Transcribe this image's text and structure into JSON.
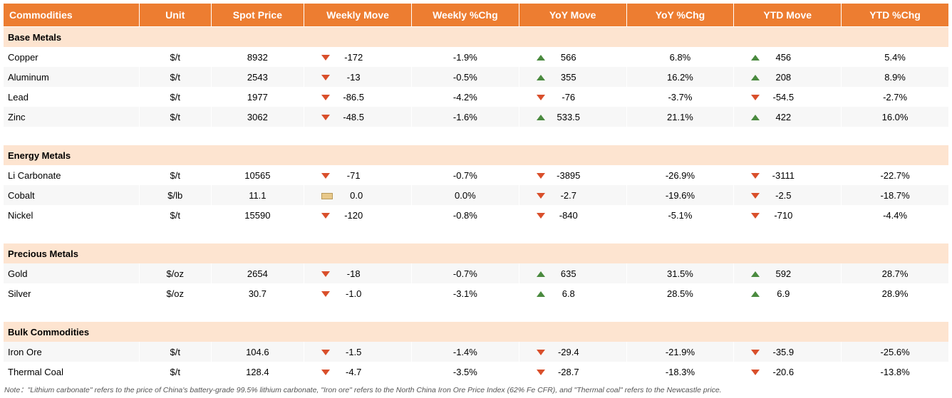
{
  "headers": {
    "commodities": "Commodities",
    "unit": "Unit",
    "spot": "Spot Price",
    "wmove": "Weekly Move",
    "wchg": "Weekly %Chg",
    "ymove": "YoY Move",
    "ychg": "YoY  %Chg",
    "ytdmove": "YTD Move",
    "ytdchg": "YTD %Chg"
  },
  "colors": {
    "header_bg": "#ed7d31",
    "header_text": "#ffffff",
    "section_bg": "#fde4d0",
    "row_alt_bg": "#f7f7f7",
    "row_bg": "#ffffff",
    "up": "#4a8a3f",
    "down": "#d94f2b",
    "flat_fill": "#e8c98b",
    "flat_border": "#b89a5b"
  },
  "fonts": {
    "header_size": 14,
    "body_size": 13,
    "note_size": 10.5
  },
  "sections": [
    {
      "title": "Base Metals",
      "rows": [
        {
          "name": "Copper",
          "unit": "$/t",
          "spot": "8932",
          "wmove": "-172",
          "wdir": "down",
          "wchg": "-1.9%",
          "ymove": "566",
          "ydir": "up",
          "ychg": "6.8%",
          "ytdmove": "456",
          "ytddir": "up",
          "ytdchg": "5.4%"
        },
        {
          "name": "Aluminum",
          "unit": "$/t",
          "spot": "2543",
          "wmove": "-13",
          "wdir": "down",
          "wchg": "-0.5%",
          "ymove": "355",
          "ydir": "up",
          "ychg": "16.2%",
          "ytdmove": "208",
          "ytddir": "up",
          "ytdchg": "8.9%"
        },
        {
          "name": "Lead",
          "unit": "$/t",
          "spot": "1977",
          "wmove": "-86.5",
          "wdir": "down",
          "wchg": "-4.2%",
          "ymove": "-76",
          "ydir": "down",
          "ychg": "-3.7%",
          "ytdmove": "-54.5",
          "ytddir": "down",
          "ytdchg": "-2.7%"
        },
        {
          "name": "Zinc",
          "unit": "$/t",
          "spot": "3062",
          "wmove": "-48.5",
          "wdir": "down",
          "wchg": "-1.6%",
          "ymove": "533.5",
          "ydir": "up",
          "ychg": "21.1%",
          "ytdmove": "422",
          "ytddir": "up",
          "ytdchg": "16.0%"
        }
      ]
    },
    {
      "title": "Energy Metals",
      "rows": [
        {
          "name": "Li Carbonate",
          "unit": "$/t",
          "spot": "10565",
          "wmove": "-71",
          "wdir": "down",
          "wchg": "-0.7%",
          "ymove": "-3895",
          "ydir": "down",
          "ychg": "-26.9%",
          "ytdmove": "-3111",
          "ytddir": "down",
          "ytdchg": "-22.7%"
        },
        {
          "name": "Cobalt",
          "unit": "$/lb",
          "spot": "11.1",
          "wmove": "0.0",
          "wdir": "flat",
          "wchg": "0.0%",
          "ymove": "-2.7",
          "ydir": "down",
          "ychg": "-19.6%",
          "ytdmove": "-2.5",
          "ytddir": "down",
          "ytdchg": "-18.7%"
        },
        {
          "name": "Nickel",
          "unit": "$/t",
          "spot": "15590",
          "wmove": "-120",
          "wdir": "down",
          "wchg": "-0.8%",
          "ymove": "-840",
          "ydir": "down",
          "ychg": "-5.1%",
          "ytdmove": "-710",
          "ytddir": "down",
          "ytdchg": "-4.4%"
        }
      ]
    },
    {
      "title": "Precious Metals",
      "rows": [
        {
          "name": "Gold",
          "unit": "$/oz",
          "spot": "2654",
          "wmove": "-18",
          "wdir": "down",
          "wchg": "-0.7%",
          "ymove": "635",
          "ydir": "up",
          "ychg": "31.5%",
          "ytdmove": "592",
          "ytddir": "up",
          "ytdchg": "28.7%"
        },
        {
          "name": "Silver",
          "unit": "$/oz",
          "spot": "30.7",
          "wmove": "-1.0",
          "wdir": "down",
          "wchg": "-3.1%",
          "ymove": "6.8",
          "ydir": "up",
          "ychg": "28.5%",
          "ytdmove": "6.9",
          "ytddir": "up",
          "ytdchg": "28.9%"
        }
      ]
    },
    {
      "title": "Bulk Commodities",
      "rows": [
        {
          "name": "Iron Ore",
          "unit": "$/t",
          "spot": "104.6",
          "wmove": "-1.5",
          "wdir": "down",
          "wchg": "-1.4%",
          "ymove": "-29.4",
          "ydir": "down",
          "ychg": "-21.9%",
          "ytdmove": "-35.9",
          "ytddir": "down",
          "ytdchg": "-25.6%"
        },
        {
          "name": "Thermal Coal",
          "unit": "$/t",
          "spot": "128.4",
          "wmove": "-4.7",
          "wdir": "down",
          "wchg": "-3.5%",
          "ymove": "-28.7",
          "ydir": "down",
          "ychg": "-18.3%",
          "ytdmove": "-20.6",
          "ytddir": "down",
          "ytdchg": "-13.8%"
        }
      ]
    }
  ],
  "note": "Note：\"Lithium carbonate\" refers to the price of China's battery-grade 99.5% lithium carbonate, \"Iron ore\" refers to the North China Iron Ore Price Index (62% Fe CFR), and \"Thermal coal\" refers to the Newcastle price."
}
